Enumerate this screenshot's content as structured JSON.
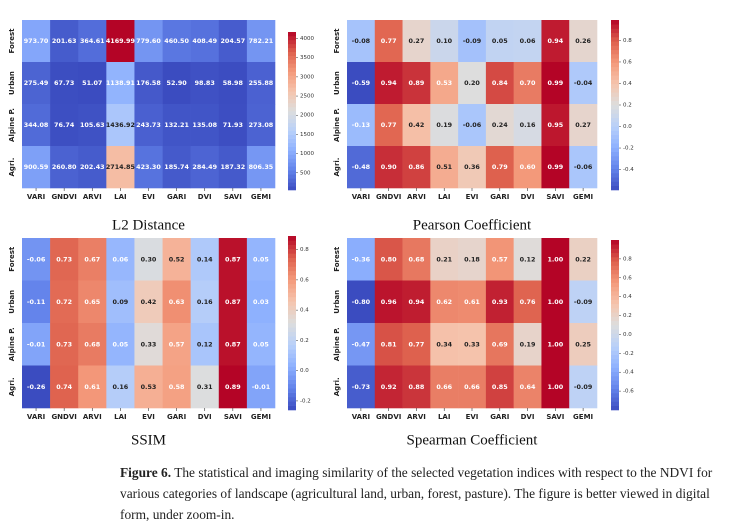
{
  "chart_data": [
    {
      "type": "heatmap",
      "title": "L2 Distance",
      "colormap": "coolwarm",
      "categories": [
        "VARI",
        "GNDVI",
        "ARVI",
        "LAI",
        "EVI",
        "GARI",
        "DVI",
        "SAVI",
        "GEMI"
      ],
      "rows": [
        "Forest",
        "Urban",
        "Alpine P.",
        "Agri."
      ],
      "values": [
        [
          973.7,
          201.63,
          364.61,
          4169.99,
          779.6,
          460.5,
          408.49,
          204.57,
          782.21
        ],
        [
          275.49,
          67.73,
          51.07,
          1138.91,
          176.58,
          52.9,
          98.83,
          58.98,
          255.88
        ],
        [
          344.08,
          76.74,
          105.63,
          1436.92,
          243.73,
          132.21,
          135.08,
          71.93,
          273.08
        ],
        [
          900.59,
          260.8,
          202.43,
          2714.85,
          423.3,
          185.74,
          284.49,
          187.32,
          806.35
        ]
      ],
      "value_labels": [
        [
          "973.70",
          "201.63",
          "364.61",
          "4169.99",
          "779.60",
          "460.50",
          "408.49",
          "204.57",
          "782.21"
        ],
        [
          "275.49",
          "67.73",
          "51.07",
          "1138.91",
          "176.58",
          "52.90",
          "98.83",
          "58.98",
          "255.88"
        ],
        [
          "344.08",
          "76.74",
          "105.63",
          "1436.92",
          "243.73",
          "132.21",
          "135.08",
          "71.93",
          "273.08"
        ],
        [
          "900.59",
          "260.80",
          "202.43",
          "2714.85",
          "423.30",
          "185.74",
          "284.49",
          "187.32",
          "806.35"
        ]
      ],
      "colorbar_ticks": [
        500,
        1000,
        1500,
        2000,
        2500,
        3000,
        3500,
        4000
      ]
    },
    {
      "type": "heatmap",
      "title": "Pearson Coefficient",
      "colormap": "coolwarm",
      "categories": [
        "VARI",
        "GNDVI",
        "ARVI",
        "LAI",
        "EVI",
        "GARI",
        "DVI",
        "SAVI",
        "GEMI"
      ],
      "rows": [
        "Forest",
        "Urban",
        "Alpine P.",
        "Agri."
      ],
      "values": [
        [
          -0.08,
          0.77,
          0.27,
          0.1,
          -0.09,
          0.05,
          0.06,
          0.94,
          0.26
        ],
        [
          -0.59,
          0.94,
          0.89,
          0.53,
          0.2,
          0.84,
          0.7,
          0.99,
          -0.04
        ],
        [
          -0.13,
          0.77,
          0.42,
          0.19,
          -0.06,
          0.24,
          0.16,
          0.95,
          0.27
        ],
        [
          -0.48,
          0.9,
          0.86,
          0.51,
          0.36,
          0.79,
          0.6,
          0.99,
          -0.06
        ]
      ],
      "value_labels": [
        [
          "-0.08",
          "0.77",
          "0.27",
          "0.10",
          "-0.09",
          "0.05",
          "0.06",
          "0.94",
          "0.26"
        ],
        [
          "-0.59",
          "0.94",
          "0.89",
          "0.53",
          "0.20",
          "0.84",
          "0.70",
          "0.99",
          "-0.04"
        ],
        [
          "-0.13",
          "0.77",
          "0.42",
          "0.19",
          "-0.06",
          "0.24",
          "0.16",
          "0.95",
          "0.27"
        ],
        [
          "-0.48",
          "0.90",
          "0.86",
          "0.51",
          "0.36",
          "0.79",
          "0.60",
          "0.99",
          "-0.06"
        ]
      ],
      "colorbar_ticks": [
        -0.4,
        -0.2,
        {
          "value": 0,
          "label": "0.0"
        },
        0.2,
        0.4,
        0.6,
        0.8
      ]
    },
    {
      "type": "heatmap",
      "title": "SSIM",
      "colormap": "coolwarm",
      "categories": [
        "VARI",
        "GNDVI",
        "ARVI",
        "LAI",
        "EVI",
        "GARI",
        "DVI",
        "SAVI",
        "GEMI"
      ],
      "rows": [
        "Forest",
        "Urban",
        "Alpine P.",
        "Agri."
      ],
      "values": [
        [
          -0.06,
          0.73,
          0.67,
          0.06,
          0.3,
          0.52,
          0.14,
          0.87,
          0.05
        ],
        [
          -0.11,
          0.72,
          0.65,
          0.09,
          0.42,
          0.63,
          0.16,
          0.87,
          0.03
        ],
        [
          -0.01,
          0.73,
          0.68,
          0.05,
          0.33,
          0.57,
          0.12,
          0.87,
          0.05
        ],
        [
          -0.26,
          0.74,
          0.61,
          0.16,
          0.53,
          0.58,
          0.31,
          0.89,
          -0.01
        ]
      ],
      "value_labels": [
        [
          "-0.06",
          "0.73",
          "0.67",
          "0.06",
          "0.30",
          "0.52",
          "0.14",
          "0.87",
          "0.05"
        ],
        [
          "-0.11",
          "0.72",
          "0.65",
          "0.09",
          "0.42",
          "0.63",
          "0.16",
          "0.87",
          "0.03"
        ],
        [
          "-0.01",
          "0.73",
          "0.68",
          "0.05",
          "0.33",
          "0.57",
          "0.12",
          "0.87",
          "0.05"
        ],
        [
          "-0.26",
          "0.74",
          "0.61",
          "0.16",
          "0.53",
          "0.58",
          "0.31",
          "0.89",
          "-0.01"
        ]
      ],
      "colorbar_ticks": [
        -0.2,
        {
          "value": 0,
          "label": "0.0"
        },
        0.2,
        0.4,
        0.6,
        0.8
      ]
    },
    {
      "type": "heatmap",
      "title": "Spearman Coefficient",
      "colormap": "coolwarm",
      "categories": [
        "VARI",
        "GNDVI",
        "ARVI",
        "LAI",
        "EVI",
        "GARI",
        "DVI",
        "SAVI",
        "GEMI"
      ],
      "rows": [
        "Forest",
        "Urban",
        "Alpine P.",
        "Agri."
      ],
      "values": [
        [
          -0.36,
          0.8,
          0.68,
          0.21,
          0.18,
          0.57,
          0.12,
          1.0,
          0.22
        ],
        [
          -0.8,
          0.96,
          0.94,
          0.62,
          0.61,
          0.93,
          0.76,
          1.0,
          -0.09
        ],
        [
          -0.47,
          0.81,
          0.77,
          0.34,
          0.33,
          0.69,
          0.19,
          1.0,
          0.25
        ],
        [
          -0.73,
          0.92,
          0.88,
          0.66,
          0.66,
          0.85,
          0.64,
          1.0,
          -0.09
        ]
      ],
      "value_labels": [
        [
          "-0.36",
          "0.80",
          "0.68",
          "0.21",
          "0.18",
          "0.57",
          "0.12",
          "1.00",
          "0.22"
        ],
        [
          "-0.80",
          "0.96",
          "0.94",
          "0.62",
          "0.61",
          "0.93",
          "0.76",
          "1.00",
          "-0.09"
        ],
        [
          "-0.47",
          "0.81",
          "0.77",
          "0.34",
          "0.33",
          "0.69",
          "0.19",
          "1.00",
          "0.25"
        ],
        [
          "-0.73",
          "0.92",
          "0.88",
          "0.66",
          "0.66",
          "0.85",
          "0.64",
          "1.00",
          "-0.09"
        ]
      ],
      "colorbar_ticks": [
        -0.6,
        -0.4,
        -0.2,
        {
          "value": 0,
          "label": "0.0"
        },
        0.2,
        0.4,
        0.6,
        0.8
      ]
    }
  ],
  "caption": {
    "label": "Figure 6.",
    "text": "The statistical and imaging similarity of the selected vegetation indices with respect to the NDVI for various categories of landscape (agricultural land, urban, forest, pasture). The figure is better viewed in digital form, under zoom-in."
  }
}
